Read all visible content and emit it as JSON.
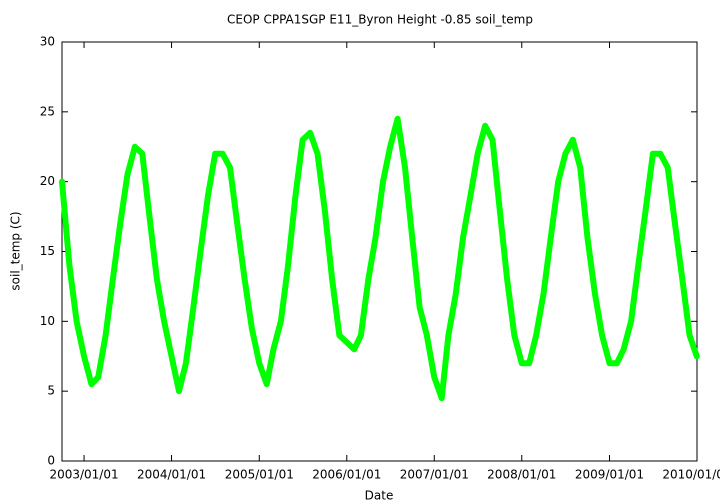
{
  "chart_data": {
    "type": "line",
    "title": "CEOP CPPA1SGP E11_Byron Height -0.85 soil_temp",
    "xlabel": "Date",
    "ylabel": "soil_temp (C)",
    "x": [
      "2002/10/01",
      "2002/11/01",
      "2002/12/01",
      "2003/01/01",
      "2003/02/01",
      "2003/03/01",
      "2003/04/01",
      "2003/05/01",
      "2003/06/01",
      "2003/07/01",
      "2003/08/01",
      "2003/09/01",
      "2003/10/01",
      "2003/11/01",
      "2003/12/01",
      "2004/01/01",
      "2004/02/01",
      "2004/03/01",
      "2004/04/01",
      "2004/05/01",
      "2004/06/01",
      "2004/07/01",
      "2004/08/01",
      "2004/09/01",
      "2004/10/01",
      "2004/11/01",
      "2004/12/01",
      "2005/01/01",
      "2005/02/01",
      "2005/03/01",
      "2005/04/01",
      "2005/05/01",
      "2005/06/01",
      "2005/07/01",
      "2005/08/01",
      "2005/09/01",
      "2005/10/01",
      "2005/11/01",
      "2005/12/01",
      "2006/01/01",
      "2006/02/01",
      "2006/03/01",
      "2006/04/01",
      "2006/05/01",
      "2006/06/01",
      "2006/07/01",
      "2006/08/01",
      "2006/09/01",
      "2006/10/01",
      "2006/11/01",
      "2006/12/01",
      "2007/01/01",
      "2007/02/01",
      "2007/03/01",
      "2007/04/01",
      "2007/05/01",
      "2007/06/01",
      "2007/07/01",
      "2007/08/01",
      "2007/09/01",
      "2007/10/01",
      "2007/11/01",
      "2007/12/01",
      "2008/01/01",
      "2008/02/01",
      "2008/03/01",
      "2008/04/01",
      "2008/05/01",
      "2008/06/01",
      "2008/07/01",
      "2008/08/01",
      "2008/09/01",
      "2008/10/01",
      "2008/11/01",
      "2008/12/01",
      "2009/01/01",
      "2009/02/01",
      "2009/03/01",
      "2009/04/01",
      "2009/05/01",
      "2009/06/01",
      "2009/07/01",
      "2009/08/01",
      "2009/09/01",
      "2009/10/01",
      "2009/11/01",
      "2009/12/01",
      "2009/12/31"
    ],
    "series": [
      {
        "name": "soil_temp",
        "color": "#00ff00",
        "values": [
          20,
          14,
          10,
          7.5,
          5.5,
          6,
          9,
          13,
          17,
          20.5,
          22.5,
          22,
          17.5,
          13,
          10,
          7.5,
          5,
          7,
          11,
          15,
          19,
          22,
          22,
          21,
          17,
          13,
          9.5,
          7,
          5.5,
          8,
          10,
          14,
          19,
          23,
          23.5,
          22,
          18,
          13,
          9,
          8.5,
          8,
          9,
          13,
          16,
          20,
          22.5,
          24.5,
          21,
          16,
          11,
          9,
          6,
          4.5,
          9,
          12,
          16,
          19,
          22,
          24,
          23,
          18,
          13,
          9,
          7,
          7,
          9,
          12,
          16,
          20,
          22,
          23,
          21,
          16,
          12,
          9,
          7,
          7,
          8,
          10,
          14,
          18,
          22,
          22,
          21,
          17,
          13,
          9,
          7.5
        ]
      }
    ],
    "xlim": [
      "2002/10/01",
      "2010/01/01"
    ],
    "xticks": [
      "2003/01/01",
      "2004/01/01",
      "2005/01/01",
      "2006/01/01",
      "2007/01/01",
      "2008/01/01",
      "2009/01/01",
      "2010/01/01"
    ],
    "ylim": [
      0,
      30
    ],
    "yticks": [
      0,
      5,
      10,
      15,
      20,
      25,
      30
    ]
  }
}
